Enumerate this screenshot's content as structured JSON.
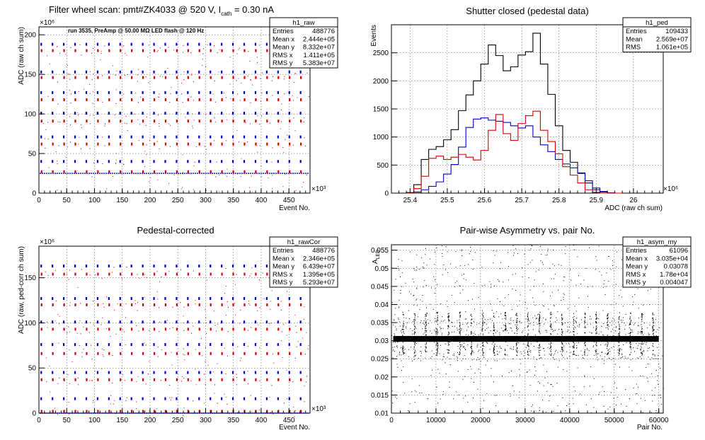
{
  "panels": [
    {
      "id": "raw",
      "title": "Filter wheel scan: pmt#ZK4033 @   520 V, I",
      "title_sub": "cath",
      "title_tail": " = 0.30 nA",
      "annotation": "run 3535, PreAmp @ 50.00 MΩ LED flash @  120 Hz",
      "x_multiplier": "×10³",
      "y_multiplier": "×10⁶",
      "stats": {
        "name": "h1_raw",
        "rows": [
          {
            "label": "Entries",
            "value": "488776"
          },
          {
            "label": "Mean x",
            "value": "2.444e+05"
          },
          {
            "label": "Mean y",
            "value": "8.332e+07"
          },
          {
            "label": "RMS x",
            "value": "1.411e+05"
          },
          {
            "label": "RMS y",
            "value": "5.383e+07"
          }
        ]
      }
    },
    {
      "id": "ped",
      "title": "Shutter closed (pedestal data)",
      "x_multiplier": "×10⁶",
      "stats": {
        "name": "h1_ped",
        "rows": [
          {
            "label": "Entries",
            "value": "109433"
          },
          {
            "label": "Mean",
            "value": "2.569e+07"
          },
          {
            "label": "RMS",
            "value": "1.061e+05"
          }
        ]
      }
    },
    {
      "id": "cor",
      "title": "Pedestal-corrected",
      "x_multiplier": "×10³",
      "y_multiplier": "×10⁶",
      "stats": {
        "name": "h1_rawCor",
        "rows": [
          {
            "label": "Entries",
            "value": "488776"
          },
          {
            "label": "Mean x",
            "value": "2.346e+05"
          },
          {
            "label": "Mean y",
            "value": "6.439e+07"
          },
          {
            "label": "RMS x",
            "value": "1.395e+05"
          },
          {
            "label": "RMS y",
            "value": "5.293e+07"
          }
        ]
      }
    },
    {
      "id": "asym",
      "title": "Pair-wise Asymmetry vs. pair No.",
      "y_label_sub": "LED",
      "stats": {
        "name": "h1_asym_my",
        "rows": [
          {
            "label": "Entries",
            "value": "61096"
          },
          {
            "label": "Mean x",
            "value": "3.035e+04"
          },
          {
            "label": "Mean y",
            "value": "0.03078"
          },
          {
            "label": "RMS x",
            "value": "1.78e+04"
          },
          {
            "label": "RMS y",
            "value": "0.004047"
          }
        ]
      }
    }
  ],
  "chart_data": [
    {
      "type": "scatter",
      "title": "Filter wheel scan: pmt#ZK4033 @   520 V, Icath = 0.30 nA",
      "xlabel": "Event No.",
      "ylabel": "ADC (raw ch sum)",
      "x_unit_scale": "10^3",
      "y_unit_scale": "10^6",
      "xlim": [
        0,
        488
      ],
      "ylim": [
        0,
        210
      ],
      "x_ticks": [
        0,
        50,
        100,
        150,
        200,
        250,
        300,
        350,
        400,
        450
      ],
      "y_ticks": [
        0,
        50,
        100,
        150,
        200
      ],
      "grid": true,
      "legend": "stats box top-right",
      "step_period": 20.3,
      "step_levels": [
        188,
        180,
        153,
        146,
        127,
        118,
        101,
        91,
        71,
        62,
        40,
        27
      ],
      "baseline_level": 25,
      "colors": {
        "points": "#d00000",
        "markers": "#0000cc",
        "baseline": "#0000cc"
      }
    },
    {
      "type": "line",
      "title": "Shutter closed (pedestal data)",
      "xlabel": "ADC (raw ch sum)",
      "ylabel": "Events",
      "x_unit_scale": "10^6",
      "xlim": [
        25.35,
        26.08
      ],
      "ylim": [
        0,
        3000
      ],
      "x_ticks": [
        25.4,
        25.5,
        25.6,
        25.7,
        25.8,
        25.9,
        26.0
      ],
      "y_ticks": [
        0,
        500,
        1000,
        1500,
        2000,
        2500
      ],
      "grid": true,
      "legend": "stats box top-right",
      "x": [
        25.4,
        25.42,
        25.44,
        25.46,
        25.48,
        25.5,
        25.52,
        25.54,
        25.56,
        25.58,
        25.6,
        25.62,
        25.64,
        25.66,
        25.68,
        25.7,
        25.72,
        25.74,
        25.76,
        25.78,
        25.8,
        25.82,
        25.84,
        25.86,
        25.88,
        25.9,
        25.92,
        25.94,
        25.96
      ],
      "series": [
        {
          "color": "#000000",
          "values": [
            10,
            150,
            600,
            780,
            830,
            950,
            1130,
            1470,
            1750,
            2000,
            2300,
            2640,
            2450,
            2180,
            2250,
            2460,
            2520,
            2850,
            2300,
            1760,
            1200,
            760,
            550,
            360,
            180,
            60,
            20,
            5,
            0
          ]
        },
        {
          "color": "#0000cc",
          "values": [
            0,
            20,
            60,
            120,
            200,
            340,
            510,
            820,
            1170,
            1320,
            1340,
            1300,
            1280,
            1260,
            1200,
            1160,
            1200,
            1000,
            860,
            740,
            600,
            520,
            450,
            350,
            220,
            90,
            30,
            5,
            0
          ]
        },
        {
          "color": "#d00000",
          "values": [
            0,
            80,
            300,
            620,
            660,
            600,
            640,
            690,
            640,
            590,
            760,
            1120,
            1400,
            1060,
            940,
            1240,
            1380,
            1460,
            1120,
            920,
            700,
            470,
            320,
            180,
            60,
            15,
            0,
            0,
            0
          ]
        }
      ]
    },
    {
      "type": "scatter",
      "title": "Pedestal-corrected",
      "xlabel": "Event No.",
      "ylabel": "ADC (raw, ped-corr ch sum)",
      "x_unit_scale": "10^3",
      "y_unit_scale": "10^6",
      "xlim": [
        0,
        488
      ],
      "ylim": [
        0,
        185
      ],
      "x_ticks": [
        0,
        50,
        100,
        150,
        200,
        250,
        300,
        350,
        400,
        450
      ],
      "y_ticks": [
        0,
        50,
        100,
        150
      ],
      "grid": true,
      "legend": "stats box top-right",
      "step_period": 20.3,
      "step_levels": [
        163,
        154,
        127,
        120,
        101,
        93,
        76,
        66,
        45,
        37,
        16,
        2
      ],
      "baseline_level": 0,
      "colors": {
        "points": "#d00000",
        "markers": "#0000cc",
        "baseline": "#0000cc"
      }
    },
    {
      "type": "scatter",
      "title": "Pair-wise Asymmetry vs. pair No.",
      "xlabel": "Pair No.",
      "ylabel": "A_LED",
      "xlim": [
        0,
        61000
      ],
      "ylim": [
        0.01,
        0.0565
      ],
      "x_ticks": [
        0,
        10000,
        20000,
        30000,
        40000,
        50000,
        60000
      ],
      "y_ticks": [
        0.01,
        0.015,
        0.02,
        0.025,
        0.03,
        0.035,
        0.04,
        0.045,
        0.05,
        0.055
      ],
      "grid": true,
      "legend": "stats box top-right",
      "band_center": 0.0305,
      "band_halfwidth": 0.0008,
      "spike_period": 2550,
      "spike_top": 0.038,
      "spike_bottom": 0.026,
      "colors": {
        "points": "#000000"
      }
    }
  ]
}
